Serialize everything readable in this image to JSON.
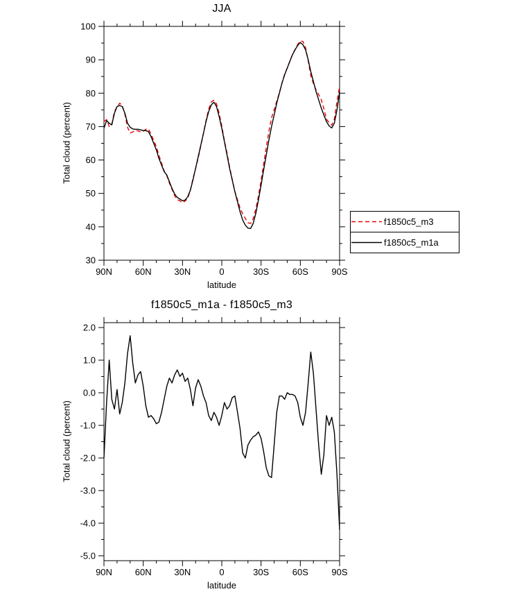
{
  "figure": {
    "background": "#ffffff",
    "line_color_black": "#000000",
    "line_color_red": "#e80000"
  },
  "chart_data": [
    {
      "type": "line",
      "title": "JJA",
      "xlabel": "latitude",
      "ylabel": "Total cloud (percent)",
      "xlim": [
        90,
        -90
      ],
      "ylim": [
        30,
        100
      ],
      "grid": false,
      "legend_position": "right-outside",
      "xticks": [
        {
          "value": 90,
          "label": "90N"
        },
        {
          "value": 60,
          "label": "60N"
        },
        {
          "value": 30,
          "label": "30N"
        },
        {
          "value": 0,
          "label": "0"
        },
        {
          "value": -30,
          "label": "30S"
        },
        {
          "value": -60,
          "label": "60S"
        },
        {
          "value": -90,
          "label": "90S"
        }
      ],
      "yticks": [
        {
          "value": 100,
          "label": "100"
        },
        {
          "value": 90,
          "label": "90"
        },
        {
          "value": 80,
          "label": "80"
        },
        {
          "value": 70,
          "label": "70"
        },
        {
          "value": 60,
          "label": "60"
        },
        {
          "value": 50,
          "label": "50"
        },
        {
          "value": 40,
          "label": "40"
        },
        {
          "value": 30,
          "label": "30"
        }
      ],
      "x_minor_step": 10,
      "y_minor_step": 5,
      "x": [
        90,
        88,
        86,
        84,
        82,
        80,
        78,
        76,
        74,
        72,
        70,
        68,
        66,
        64,
        62,
        60,
        58,
        56,
        54,
        52,
        50,
        48,
        46,
        44,
        42,
        40,
        38,
        36,
        34,
        32,
        30,
        28,
        26,
        24,
        22,
        20,
        18,
        16,
        14,
        12,
        10,
        8,
        6,
        4,
        2,
        0,
        -2,
        -4,
        -6,
        -8,
        -10,
        -12,
        -14,
        -16,
        -18,
        -20,
        -22,
        -24,
        -26,
        -28,
        -30,
        -32,
        -34,
        -36,
        -38,
        -40,
        -42,
        -44,
        -46,
        -48,
        -50,
        -52,
        -54,
        -56,
        -58,
        -60,
        -62,
        -64,
        -66,
        -68,
        -70,
        -72,
        -74,
        -76,
        -78,
        -80,
        -82,
        -84,
        -86,
        -88,
        -90
      ],
      "series": [
        {
          "name": "f1850c5_m3",
          "color": "#e80000",
          "dash": true,
          "values": [
            71.5,
            72.1,
            70.0,
            70.7,
            74.5,
            75.9,
            77.0,
            76.3,
            73.7,
            69.8,
            68.1,
            68.4,
            68.9,
            68.7,
            68.4,
            68.6,
            69.2,
            69.3,
            67.7,
            65.8,
            64.0,
            61.4,
            59.1,
            56.7,
            55.3,
            53.1,
            51.2,
            49.3,
            48.1,
            47.8,
            47.2,
            47.7,
            48.6,
            50.9,
            54.4,
            57.4,
            60.6,
            64.3,
            68.1,
            71.8,
            75.2,
            77.4,
            77.9,
            76.8,
            74.0,
            70.2,
            65.8,
            62.0,
            57.9,
            54.2,
            50.6,
            48.1,
            45.6,
            43.9,
            42.5,
            41.2,
            41.0,
            42.4,
            45.3,
            49.2,
            53.9,
            58.8,
            63.8,
            68.6,
            72.6,
            75.1,
            77.6,
            80.1,
            83.1,
            85.7,
            87.5,
            89.6,
            91.6,
            93.1,
            94.6,
            95.6,
            95.5,
            93.6,
            89.7,
            85.3,
            82.9,
            81.0,
            79.6,
            78.0,
            75.4,
            72.2,
            71.2,
            70.4,
            72.2,
            77.5,
            82.0
          ]
        },
        {
          "name": "f1850c5_m1a",
          "color": "#000000",
          "dash": false,
          "values": [
            69.5,
            71.8,
            71.0,
            70.5,
            74.0,
            76.0,
            76.3,
            76.0,
            74.0,
            71.0,
            69.8,
            69.3,
            69.2,
            69.2,
            69.0,
            68.8,
            68.8,
            68.5,
            67.0,
            65.0,
            63.0,
            60.5,
            58.5,
            56.5,
            55.5,
            53.5,
            51.5,
            49.8,
            48.8,
            48.3,
            47.8,
            48.0,
            49.0,
            51.0,
            54.0,
            57.5,
            61.0,
            64.5,
            68.0,
            71.5,
            74.5,
            76.5,
            77.3,
            76.0,
            73.0,
            69.5,
            65.5,
            61.5,
            57.5,
            54.0,
            50.5,
            47.5,
            44.5,
            42.0,
            40.5,
            39.6,
            39.5,
            41.0,
            44.0,
            48.0,
            52.5,
            57.0,
            61.5,
            66.0,
            70.0,
            73.5,
            77.0,
            80.0,
            83.0,
            85.5,
            87.5,
            89.5,
            91.5,
            93.0,
            94.3,
            95.2,
            94.5,
            93.0,
            90.0,
            86.5,
            83.5,
            80.5,
            78.0,
            75.5,
            73.5,
            71.5,
            70.2,
            69.6,
            71.0,
            75.0,
            80.5
          ]
        }
      ]
    },
    {
      "type": "line",
      "title": "f1850c5_m1a - f1850c5_m3",
      "xlabel": "latitude",
      "ylabel": "Total cloud (percent)",
      "xlim": [
        90,
        -90
      ],
      "ylim": [
        -5,
        2
      ],
      "grid": false,
      "legend_position": "none",
      "xticks": [
        {
          "value": 90,
          "label": "90N"
        },
        {
          "value": 60,
          "label": "60N"
        },
        {
          "value": 30,
          "label": "30N"
        },
        {
          "value": 0,
          "label": "0"
        },
        {
          "value": -30,
          "label": "30S"
        },
        {
          "value": -60,
          "label": "60S"
        },
        {
          "value": -90,
          "label": "90S"
        }
      ],
      "yticks": [
        {
          "value": 2,
          "label": "2.0"
        },
        {
          "value": 1,
          "label": "1.0"
        },
        {
          "value": 0,
          "label": "0.0"
        },
        {
          "value": -1,
          "label": "-1.0"
        },
        {
          "value": -2,
          "label": "-2.0"
        },
        {
          "value": -3,
          "label": "-3.0"
        },
        {
          "value": -4,
          "label": "-4.0"
        },
        {
          "value": -5,
          "label": "-5.0"
        }
      ],
      "x_minor_step": 10,
      "y_minor_step": 0.5,
      "x": [
        90,
        88,
        86,
        84,
        82,
        80,
        78,
        76,
        74,
        72,
        70,
        68,
        66,
        64,
        62,
        60,
        58,
        56,
        54,
        52,
        50,
        48,
        46,
        44,
        42,
        40,
        38,
        36,
        34,
        32,
        30,
        28,
        26,
        24,
        22,
        20,
        18,
        16,
        14,
        12,
        10,
        8,
        6,
        4,
        2,
        0,
        -2,
        -4,
        -6,
        -8,
        -10,
        -12,
        -14,
        -16,
        -18,
        -20,
        -22,
        -24,
        -26,
        -28,
        -30,
        -32,
        -34,
        -36,
        -38,
        -40,
        -42,
        -44,
        -46,
        -48,
        -50,
        -52,
        -54,
        -56,
        -58,
        -60,
        -62,
        -64,
        -66,
        -68,
        -70,
        -72,
        -74,
        -76,
        -78,
        -80,
        -82,
        -84,
        -86,
        -88,
        -90
      ],
      "series": [
        {
          "name": "f1850c5_m1a - f1850c5_m3",
          "color": "#000000",
          "dash": false,
          "values": [
            -2.0,
            -0.3,
            1.0,
            -0.2,
            -0.5,
            0.1,
            -0.65,
            -0.3,
            0.3,
            1.2,
            1.75,
            0.9,
            0.3,
            0.55,
            0.65,
            0.2,
            -0.4,
            -0.75,
            -0.7,
            -0.8,
            -0.95,
            -0.9,
            -0.6,
            -0.2,
            0.2,
            0.45,
            0.3,
            0.55,
            0.7,
            0.5,
            0.6,
            0.35,
            0.45,
            0.1,
            -0.4,
            0.15,
            0.4,
            0.2,
            -0.1,
            -0.3,
            -0.7,
            -0.85,
            -0.6,
            -0.75,
            -1.0,
            -0.7,
            -0.3,
            -0.5,
            -0.4,
            -0.15,
            -0.1,
            -0.6,
            -1.1,
            -1.85,
            -2.0,
            -1.6,
            -1.45,
            -1.35,
            -1.3,
            -1.2,
            -1.4,
            -1.8,
            -2.3,
            -2.55,
            -2.6,
            -1.6,
            -0.6,
            -0.1,
            -0.1,
            -0.2,
            0.0,
            -0.05,
            -0.05,
            -0.1,
            -0.3,
            -0.75,
            -1.0,
            -0.6,
            0.3,
            1.25,
            0.6,
            -0.5,
            -1.6,
            -2.5,
            -1.9,
            -0.7,
            -1.0,
            -0.75,
            -1.2,
            -2.5,
            -4.2
          ]
        }
      ]
    }
  ]
}
